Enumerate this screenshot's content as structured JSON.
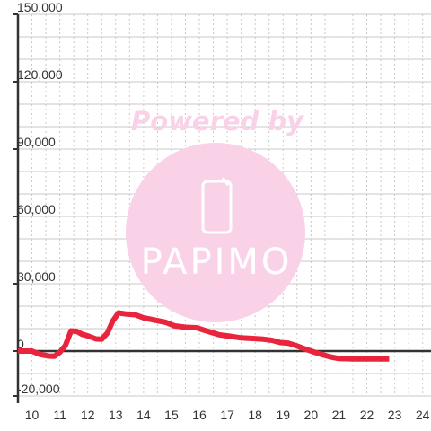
{
  "chart_data": {
    "type": "line",
    "title": "",
    "xlabel": "",
    "ylabel": "",
    "xlim": [
      9.5,
      24.3
    ],
    "ylim": [
      -20000,
      150000
    ],
    "x_ticks": [
      10,
      11,
      12,
      13,
      14,
      15,
      16,
      17,
      18,
      19,
      20,
      21,
      22,
      23,
      24
    ],
    "x_tick_labels": [
      "10",
      "11",
      "12",
      "13",
      "14",
      "15",
      "16",
      "17",
      "18",
      "19",
      "20",
      "21",
      "22",
      "23",
      "24"
    ],
    "y_ticks": [
      -20000,
      0,
      30000,
      60000,
      90000,
      120000,
      150000
    ],
    "y_tick_labels": [
      "-20,000",
      "0",
      "30,000",
      "60,000",
      "90,000",
      "120,000",
      "150,000"
    ],
    "grid": true,
    "series": [
      {
        "color": "#e8253c",
        "points": [
          [
            9.5,
            0
          ],
          [
            10.0,
            0
          ],
          [
            10.3,
            -1500
          ],
          [
            10.6,
            -2200
          ],
          [
            10.8,
            -2300
          ],
          [
            11.0,
            -500
          ],
          [
            11.2,
            2500
          ],
          [
            11.4,
            9000
          ],
          [
            11.6,
            8800
          ],
          [
            11.8,
            7500
          ],
          [
            12.0,
            6800
          ],
          [
            12.3,
            5400
          ],
          [
            12.5,
            5300
          ],
          [
            12.7,
            8000
          ],
          [
            12.9,
            13500
          ],
          [
            13.1,
            17000
          ],
          [
            13.4,
            16500
          ],
          [
            13.7,
            16200
          ],
          [
            14.0,
            14800
          ],
          [
            14.4,
            13800
          ],
          [
            14.8,
            12800
          ],
          [
            15.1,
            11300
          ],
          [
            15.5,
            10600
          ],
          [
            15.9,
            10400
          ],
          [
            16.3,
            8800
          ],
          [
            16.7,
            7300
          ],
          [
            17.1,
            6600
          ],
          [
            17.5,
            5900
          ],
          [
            17.9,
            5600
          ],
          [
            18.3,
            5300
          ],
          [
            18.6,
            4800
          ],
          [
            18.9,
            3800
          ],
          [
            19.2,
            3500
          ],
          [
            19.5,
            2300
          ],
          [
            19.8,
            900
          ],
          [
            20.1,
            -400
          ],
          [
            20.4,
            -1600
          ],
          [
            20.7,
            -2600
          ],
          [
            21.0,
            -3300
          ],
          [
            21.5,
            -3500
          ],
          [
            22.0,
            -3500
          ],
          [
            22.5,
            -3500
          ],
          [
            22.8,
            -3500
          ]
        ]
      }
    ],
    "watermark": {
      "text": "Powered by",
      "logo_text": "PAPIMO",
      "color": "#fad2e8",
      "logo_icon": "phone-icon"
    }
  }
}
